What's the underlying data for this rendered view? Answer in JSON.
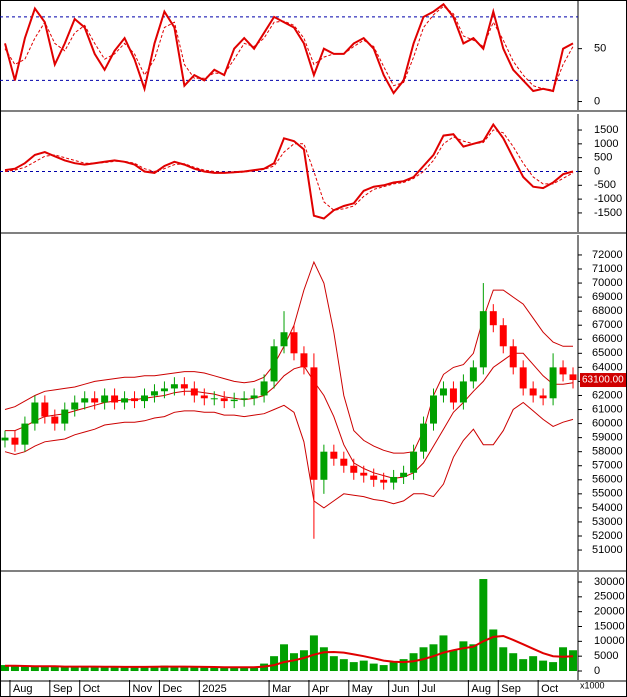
{
  "chart_data": [
    {
      "type": "line",
      "ylim": [
        -8,
        96
      ],
      "yticks": [
        0,
        50
      ],
      "hlines": [
        20,
        80
      ],
      "color": "#e00000",
      "signal_color": "#e00000",
      "values": [
        55,
        20,
        60,
        88,
        75,
        35,
        55,
        78,
        70,
        45,
        30,
        48,
        60,
        40,
        12,
        55,
        85,
        70,
        15,
        25,
        20,
        30,
        25,
        50,
        60,
        50,
        65,
        80,
        75,
        70,
        55,
        25,
        50,
        45,
        45,
        55,
        60,
        50,
        25,
        8,
        20,
        55,
        80,
        85,
        92,
        80,
        55,
        60,
        50,
        85,
        50,
        30,
        20,
        10,
        12,
        10,
        50,
        55
      ],
      "signal": [
        50,
        35,
        40,
        60,
        75,
        55,
        48,
        65,
        72,
        55,
        40,
        45,
        55,
        45,
        25,
        40,
        70,
        75,
        35,
        22,
        22,
        27,
        26,
        40,
        55,
        52,
        60,
        75,
        76,
        72,
        60,
        35,
        42,
        45,
        45,
        52,
        58,
        52,
        33,
        15,
        18,
        42,
        70,
        82,
        90,
        83,
        62,
        58,
        52,
        75,
        58,
        38,
        25,
        15,
        12,
        11,
        35,
        52
      ]
    },
    {
      "type": "line",
      "ylim": [
        -2190,
        2080
      ],
      "yticks": [
        -1500,
        -1000,
        -500,
        0,
        500,
        1000,
        1500
      ],
      "hlines": [
        0
      ],
      "color": "#e00000",
      "signal_color": "#e00000",
      "values": [
        50,
        100,
        300,
        600,
        700,
        550,
        400,
        300,
        250,
        300,
        350,
        400,
        350,
        250,
        0,
        -50,
        200,
        350,
        250,
        100,
        0,
        -50,
        -50,
        -30,
        0,
        50,
        100,
        300,
        1200,
        1100,
        800,
        -1600,
        -1700,
        -1400,
        -1250,
        -1150,
        -700,
        -550,
        -500,
        -400,
        -350,
        -200,
        200,
        600,
        1300,
        1350,
        900,
        1000,
        1100,
        1700,
        1200,
        500,
        -200,
        -550,
        -600,
        -400,
        -100,
        0
      ],
      "signal": [
        0,
        50,
        150,
        350,
        550,
        600,
        500,
        400,
        300,
        300,
        320,
        370,
        370,
        300,
        100,
        0,
        100,
        250,
        280,
        150,
        50,
        0,
        -40,
        -40,
        -20,
        20,
        80,
        200,
        700,
        1000,
        1000,
        0,
        -1100,
        -1400,
        -1350,
        -1250,
        -900,
        -650,
        -550,
        -450,
        -400,
        -250,
        0,
        400,
        1000,
        1250,
        1100,
        1000,
        1050,
        1500,
        1400,
        900,
        300,
        -200,
        -450,
        -450,
        -250,
        -50
      ]
    },
    {
      "type": "candlestick",
      "ylim": [
        49580,
        73420
      ],
      "yticks": [
        51000,
        52000,
        53000,
        54000,
        55000,
        56000,
        57000,
        58000,
        59000,
        60000,
        61000,
        62000,
        63000,
        64000,
        65000,
        66000,
        67000,
        68000,
        69000,
        70000,
        71000,
        72000
      ],
      "up_color": "#00a000",
      "down_color": "#ff0000",
      "band_color": "#cc0000",
      "last_price": {
        "value": 63100,
        "label": "63100.00"
      },
      "open": [
        58800,
        59000,
        58500,
        60000,
        61500,
        60500,
        60000,
        61000,
        61500,
        61800,
        61500,
        62000,
        61500,
        61800,
        61600,
        62000,
        62300,
        62500,
        62800,
        62500,
        62000,
        61800,
        61800,
        61600,
        61700,
        61800,
        62000,
        63000,
        65500,
        66500,
        65000,
        64000,
        56000,
        58000,
        57500,
        57000,
        56500,
        56300,
        56000,
        55800,
        56200,
        56500,
        58000,
        60000,
        62000,
        62500,
        61500,
        63000,
        64000,
        68000,
        67000,
        65500,
        64000,
        62500,
        62000,
        61800,
        64000,
        63500
      ],
      "high": [
        59500,
        59500,
        60500,
        62000,
        62000,
        61000,
        61500,
        62000,
        62300,
        62300,
        62500,
        62500,
        62300,
        62300,
        62500,
        62800,
        63000,
        63300,
        63300,
        63000,
        62500,
        62300,
        62300,
        62200,
        62300,
        62500,
        63500,
        66000,
        68000,
        67000,
        65500,
        65000,
        58500,
        58500,
        58000,
        57500,
        57000,
        56800,
        56500,
        56700,
        57000,
        58500,
        60500,
        62500,
        63000,
        63000,
        63500,
        64500,
        70000,
        68500,
        67500,
        66000,
        64500,
        63000,
        62500,
        65000,
        64500,
        64000
      ],
      "low": [
        58300,
        58000,
        58000,
        59500,
        60000,
        59500,
        59500,
        60500,
        61000,
        61000,
        61000,
        61000,
        61000,
        61100,
        61100,
        61500,
        61800,
        62000,
        62000,
        61500,
        61300,
        61300,
        61100,
        61100,
        61200,
        61300,
        61500,
        62500,
        65000,
        64500,
        63500,
        51800,
        55000,
        57000,
        56500,
        56000,
        55800,
        55500,
        55300,
        55300,
        55700,
        56000,
        57500,
        59500,
        61500,
        61000,
        61000,
        62500,
        63500,
        66500,
        65000,
        63500,
        62000,
        61500,
        61300,
        61300,
        63000,
        62500
      ],
      "close": [
        59000,
        58500,
        60000,
        61500,
        60500,
        60000,
        61000,
        61500,
        61800,
        61500,
        62000,
        61500,
        61800,
        61600,
        62000,
        62300,
        62500,
        62800,
        62500,
        62000,
        61800,
        61800,
        61600,
        61700,
        61800,
        62000,
        63000,
        65500,
        66500,
        65000,
        64000,
        56000,
        58000,
        57500,
        57000,
        56500,
        56300,
        56000,
        55800,
        56200,
        56500,
        58000,
        60000,
        62000,
        62500,
        61500,
        63000,
        64000,
        68000,
        67000,
        65500,
        64000,
        62500,
        62000,
        61800,
        64000,
        63500,
        63100
      ],
      "upper": [
        61000,
        61200,
        61600,
        62000,
        62300,
        62400,
        62500,
        62600,
        62800,
        63000,
        63100,
        63200,
        63300,
        63300,
        63400,
        63400,
        63500,
        63600,
        63700,
        63700,
        63600,
        63400,
        63200,
        63000,
        62900,
        63000,
        63300,
        64200,
        65500,
        67000,
        69500,
        71500,
        70000,
        66500,
        62000,
        59500,
        58800,
        58400,
        58100,
        57900,
        57900,
        58000,
        59500,
        62000,
        63500,
        64000,
        64200,
        65000,
        67500,
        69500,
        69500,
        69000,
        68500,
        67500,
        66500,
        65800,
        65500,
        65500
      ],
      "middle": [
        59500,
        59500,
        59800,
        60200,
        60500,
        60600,
        60700,
        60900,
        61100,
        61300,
        61500,
        61600,
        61700,
        61700,
        61800,
        61900,
        62000,
        62200,
        62300,
        62300,
        62200,
        62100,
        61900,
        61800,
        61700,
        61800,
        62000,
        62600,
        63400,
        63900,
        64100,
        63000,
        62000,
        60500,
        58500,
        57200,
        56800,
        56500,
        56300,
        56100,
        56200,
        56500,
        57200,
        58400,
        59600,
        60800,
        61500,
        62300,
        63000,
        64000,
        64500,
        65000,
        65000,
        64200,
        63400,
        62800,
        62800,
        62900
      ],
      "lower": [
        58000,
        57800,
        58000,
        58400,
        58700,
        58800,
        58900,
        59200,
        59400,
        59600,
        59900,
        60000,
        60100,
        60100,
        60200,
        60400,
        60500,
        60800,
        60900,
        60900,
        60800,
        60800,
        60600,
        60600,
        60500,
        60600,
        60700,
        61000,
        61300,
        60800,
        58700,
        54500,
        54000,
        54500,
        55000,
        54900,
        54800,
        54600,
        54500,
        54300,
        54500,
        55000,
        55000,
        54800,
        55700,
        57600,
        58800,
        59600,
        58500,
        58500,
        59500,
        61000,
        61500,
        60900,
        60300,
        59800,
        60100,
        60300
      ]
    },
    {
      "type": "bar",
      "ylim": [
        -3030,
        33370
      ],
      "yticks": [
        0,
        5000,
        10000,
        15000,
        20000,
        25000,
        30000
      ],
      "y_unit": "x1000",
      "color": "#00a000",
      "ma_color": "#e00000",
      "categories": [
        null,
        "Aug",
        null,
        null,
        null,
        "Sep",
        null,
        null,
        "Oct",
        null,
        null,
        null,
        null,
        "Nov",
        null,
        null,
        "Dec",
        null,
        null,
        null,
        "2025",
        null,
        null,
        null,
        null,
        null,
        null,
        "Mar",
        null,
        null,
        null,
        "Apr",
        null,
        null,
        null,
        "May",
        null,
        null,
        null,
        "Jun",
        null,
        null,
        "Jul",
        null,
        null,
        null,
        null,
        "Aug",
        null,
        null,
        "Sep",
        null,
        null,
        null,
        "Oct",
        null,
        null,
        null
      ],
      "values": [
        2000,
        1800,
        1500,
        1500,
        1800,
        1500,
        1400,
        1500,
        1500,
        1300,
        1500,
        1400,
        1300,
        1200,
        1500,
        1600,
        1800,
        1500,
        1400,
        1300,
        1200,
        1200,
        1100,
        1200,
        1300,
        1500,
        2500,
        5000,
        9000,
        6000,
        7000,
        12000,
        8000,
        5000,
        4000,
        3000,
        3500,
        2500,
        2000,
        3000,
        4000,
        6000,
        8000,
        9000,
        12000,
        7000,
        10000,
        9000,
        31000,
        14000,
        8000,
        6000,
        4000,
        5000,
        3500,
        3000,
        8000,
        7000
      ],
      "ma": [
        1800,
        1800,
        1700,
        1600,
        1600,
        1600,
        1500,
        1500,
        1500,
        1500,
        1450,
        1450,
        1400,
        1400,
        1400,
        1450,
        1500,
        1500,
        1500,
        1450,
        1400,
        1350,
        1300,
        1250,
        1250,
        1300,
        1500,
        2000,
        3000,
        3600,
        4400,
        5500,
        6300,
        6400,
        6200,
        5600,
        5000,
        4300,
        3500,
        3100,
        3000,
        3300,
        4000,
        5000,
        6200,
        7000,
        7700,
        8200,
        10000,
        11500,
        11800,
        10500,
        9000,
        7500,
        6000,
        5000,
        4800,
        5000
      ]
    }
  ]
}
